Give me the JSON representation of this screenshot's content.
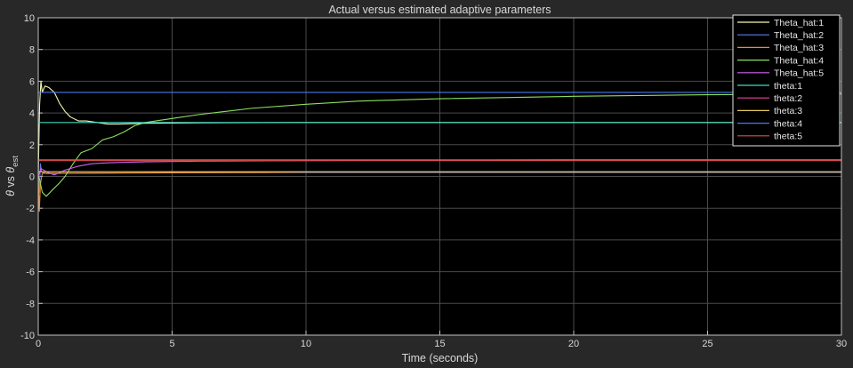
{
  "chart_data": {
    "type": "line",
    "title": "Actual versus estimated adaptive parameters",
    "xlabel": "Time (seconds)",
    "ylabel": "θ vs θest",
    "ylabel_parts": {
      "sym": "θ",
      "vs": " vs ",
      "sym2": "θ",
      "sub": "est"
    },
    "xlim": [
      0,
      30
    ],
    "ylim": [
      -10,
      10
    ],
    "xticks": [
      "0",
      "5",
      "10",
      "15",
      "20",
      "25",
      "30"
    ],
    "yticks": [
      "-10",
      "-8",
      "-6",
      "-4",
      "-2",
      "0",
      "2",
      "4",
      "6",
      "8",
      "10"
    ],
    "grid": true,
    "legend_position": "top-right",
    "series": [
      {
        "name": "Theta_hat:1",
        "color": "#f6f6b0",
        "points": [
          [
            0,
            0
          ],
          [
            0.05,
            4.5
          ],
          [
            0.1,
            6.0
          ],
          [
            0.15,
            5.3
          ],
          [
            0.25,
            5.7
          ],
          [
            0.4,
            5.6
          ],
          [
            0.6,
            5.3
          ],
          [
            0.8,
            4.6
          ],
          [
            1.0,
            4.1
          ],
          [
            1.2,
            3.75
          ],
          [
            1.5,
            3.5
          ],
          [
            1.8,
            3.5
          ],
          [
            2.2,
            3.4
          ],
          [
            2.6,
            3.3
          ],
          [
            3.0,
            3.3
          ],
          [
            4,
            3.35
          ],
          [
            6,
            3.38
          ],
          [
            10,
            3.4
          ],
          [
            20,
            3.4
          ],
          [
            30,
            3.4
          ]
        ]
      },
      {
        "name": "Theta_hat:2",
        "color": "#5a7cf0",
        "points": [
          [
            0,
            0
          ],
          [
            0.04,
            -1.0
          ],
          [
            0.08,
            0.8
          ],
          [
            0.12,
            0.3
          ],
          [
            0.3,
            0.18
          ],
          [
            1,
            0.2
          ],
          [
            5,
            0.25
          ],
          [
            10,
            0.25
          ],
          [
            30,
            0.25
          ]
        ]
      },
      {
        "name": "Theta_hat:3",
        "color": "#f08a2a",
        "points": [
          [
            0,
            0
          ],
          [
            0.04,
            -2.2
          ],
          [
            0.08,
            -0.5
          ],
          [
            0.15,
            0.2
          ],
          [
            0.3,
            0.2
          ],
          [
            1,
            0.2
          ],
          [
            8.5,
            0.25
          ],
          [
            10,
            0.28
          ],
          [
            30,
            0.28
          ]
        ]
      },
      {
        "name": "Theta_hat:4",
        "color": "#8ce060",
        "points": [
          [
            0,
            0
          ],
          [
            0.05,
            -0.2
          ],
          [
            0.15,
            -1.0
          ],
          [
            0.3,
            -1.25
          ],
          [
            0.5,
            -0.9
          ],
          [
            0.8,
            -0.4
          ],
          [
            1.0,
            0.0
          ],
          [
            1.3,
            0.8
          ],
          [
            1.6,
            1.5
          ],
          [
            2.0,
            1.75
          ],
          [
            2.4,
            2.3
          ],
          [
            2.8,
            2.5
          ],
          [
            3.2,
            2.8
          ],
          [
            3.6,
            3.2
          ],
          [
            4.0,
            3.4
          ],
          [
            5,
            3.65
          ],
          [
            6,
            3.9
          ],
          [
            7,
            4.1
          ],
          [
            8,
            4.3
          ],
          [
            10,
            4.55
          ],
          [
            12,
            4.75
          ],
          [
            15,
            4.9
          ],
          [
            20,
            5.05
          ],
          [
            25,
            5.15
          ],
          [
            30,
            5.2
          ]
        ]
      },
      {
        "name": "Theta_hat:5",
        "color": "#d060f0",
        "points": [
          [
            0,
            0
          ],
          [
            0.1,
            0.5
          ],
          [
            0.3,
            0.3
          ],
          [
            0.6,
            0.1
          ],
          [
            1.0,
            0.4
          ],
          [
            1.5,
            0.65
          ],
          [
            2.0,
            0.8
          ],
          [
            2.5,
            0.85
          ],
          [
            3,
            0.88
          ],
          [
            4,
            0.92
          ],
          [
            6,
            0.96
          ],
          [
            10,
            1.0
          ],
          [
            20,
            1.05
          ],
          [
            30,
            1.05
          ]
        ]
      },
      {
        "name": "theta:1",
        "color": "#40d8c0",
        "points": [
          [
            0,
            3.4
          ],
          [
            30,
            3.4
          ]
        ]
      },
      {
        "name": "theta:2",
        "color": "#f040a0",
        "points": [
          [
            0,
            1.05
          ],
          [
            30,
            1.05
          ]
        ]
      },
      {
        "name": "theta:3",
        "color": "#e8c860",
        "points": [
          [
            0,
            0.3
          ],
          [
            30,
            0.3
          ]
        ]
      },
      {
        "name": "theta:4",
        "color": "#4878f0",
        "points": [
          [
            0,
            5.3
          ],
          [
            30,
            5.3
          ]
        ]
      },
      {
        "name": "theta:5",
        "color": "#d85048",
        "points": [
          [
            0,
            1.0
          ],
          [
            30,
            1.0
          ]
        ]
      }
    ]
  }
}
